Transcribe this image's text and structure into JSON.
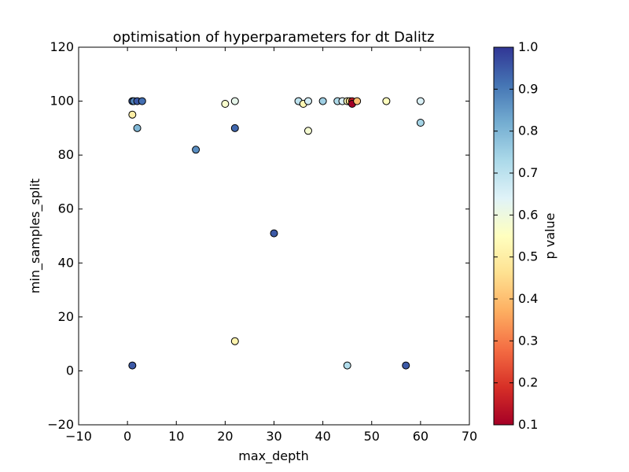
{
  "chart_data": {
    "type": "scatter",
    "title": "optimisation of hyperparameters for dt Dalitz",
    "xlabel": "max_depth",
    "ylabel": "min_samples_split",
    "xlim": [
      -10,
      70
    ],
    "ylim": [
      -20,
      120
    ],
    "xticks": [
      "−10",
      "0",
      "10",
      "20",
      "30",
      "40",
      "50",
      "60",
      "70"
    ],
    "yticks": [
      "−20",
      "0",
      "20",
      "40",
      "60",
      "80",
      "100",
      "120"
    ],
    "colorbar": {
      "label": "p value",
      "range": [
        0.1,
        1.0
      ],
      "ticks": [
        "0.1",
        "0.2",
        "0.3",
        "0.4",
        "0.5",
        "0.6",
        "0.7",
        "0.8",
        "0.9",
        "1.0"
      ],
      "colormap": "RdYlBu",
      "stops": [
        "#a50026",
        "#d73027",
        "#f46d43",
        "#fdae61",
        "#fee090",
        "#ffffbf",
        "#e0f3f8",
        "#abd9e9",
        "#74add1",
        "#4575b4",
        "#313695"
      ]
    },
    "grid": false,
    "points": [
      {
        "x": 1,
        "y": 100,
        "p": 0.93
      },
      {
        "x": 1.3,
        "y": 100,
        "p": 0.88
      },
      {
        "x": 2,
        "y": 100,
        "p": 0.95
      },
      {
        "x": 3,
        "y": 100,
        "p": 0.92
      },
      {
        "x": 1,
        "y": 95,
        "p": 0.5
      },
      {
        "x": 2,
        "y": 90,
        "p": 0.8
      },
      {
        "x": 1,
        "y": 2,
        "p": 0.95
      },
      {
        "x": 14,
        "y": 82,
        "p": 0.87
      },
      {
        "x": 20,
        "y": 99,
        "p": 0.57
      },
      {
        "x": 22,
        "y": 100,
        "p": 0.62
      },
      {
        "x": 22,
        "y": 90,
        "p": 0.93
      },
      {
        "x": 22,
        "y": 11,
        "p": 0.52
      },
      {
        "x": 30,
        "y": 51,
        "p": 0.95
      },
      {
        "x": 35,
        "y": 100,
        "p": 0.7
      },
      {
        "x": 36,
        "y": 99,
        "p": 0.53
      },
      {
        "x": 37,
        "y": 100,
        "p": 0.66
      },
      {
        "x": 37,
        "y": 89,
        "p": 0.58
      },
      {
        "x": 40,
        "y": 100,
        "p": 0.75
      },
      {
        "x": 43,
        "y": 100,
        "p": 0.72
      },
      {
        "x": 44,
        "y": 100,
        "p": 0.65
      },
      {
        "x": 45,
        "y": 100,
        "p": 0.55
      },
      {
        "x": 45.5,
        "y": 100,
        "p": 0.45
      },
      {
        "x": 46,
        "y": 100,
        "p": 0.15
      },
      {
        "x": 46,
        "y": 99,
        "p": 0.1
      },
      {
        "x": 47,
        "y": 100,
        "p": 0.4
      },
      {
        "x": 45,
        "y": 2,
        "p": 0.72
      },
      {
        "x": 53,
        "y": 100,
        "p": 0.55
      },
      {
        "x": 57,
        "y": 2,
        "p": 0.95
      },
      {
        "x": 60,
        "y": 100,
        "p": 0.65
      },
      {
        "x": 60,
        "y": 92,
        "p": 0.74
      }
    ]
  }
}
